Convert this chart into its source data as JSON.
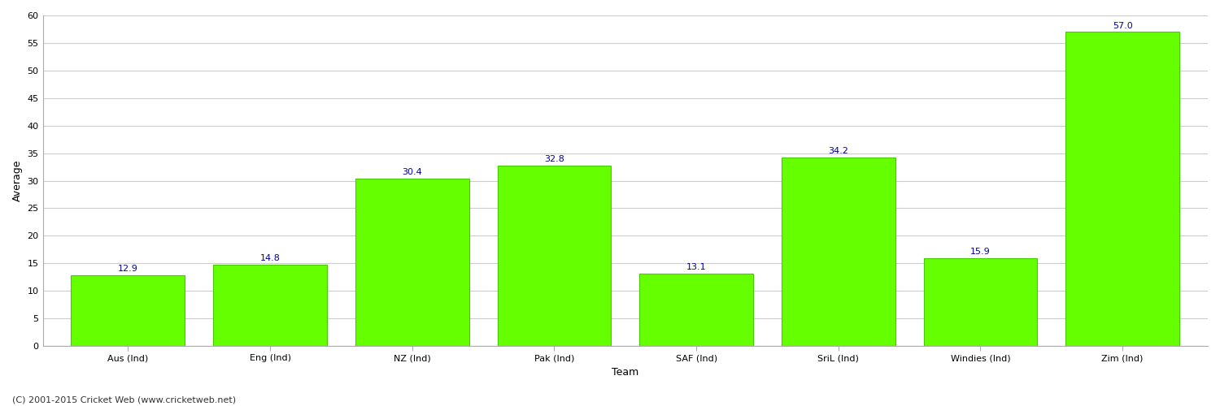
{
  "categories": [
    "Aus (Ind)",
    "Eng (Ind)",
    "NZ (Ind)",
    "Pak (Ind)",
    "SAF (Ind)",
    "SriL (Ind)",
    "Windies (Ind)",
    "Zim (Ind)"
  ],
  "values": [
    12.9,
    14.8,
    30.4,
    32.8,
    13.1,
    34.2,
    15.9,
    57.0
  ],
  "bar_color": "#66ff00",
  "bar_edge_color": "#44cc00",
  "value_label_color": "#000099",
  "ylabel": "Average",
  "xlabel": "Team",
  "ylim": [
    0,
    60
  ],
  "yticks": [
    0,
    5,
    10,
    15,
    20,
    25,
    30,
    35,
    40,
    45,
    50,
    55,
    60
  ],
  "grid_color": "#cccccc",
  "background_color": "#ffffff",
  "footer": "(C) 2001-2015 Cricket Web (www.cricketweb.net)",
  "value_fontsize": 8,
  "axis_label_fontsize": 9,
  "tick_fontsize": 8,
  "footer_fontsize": 8
}
